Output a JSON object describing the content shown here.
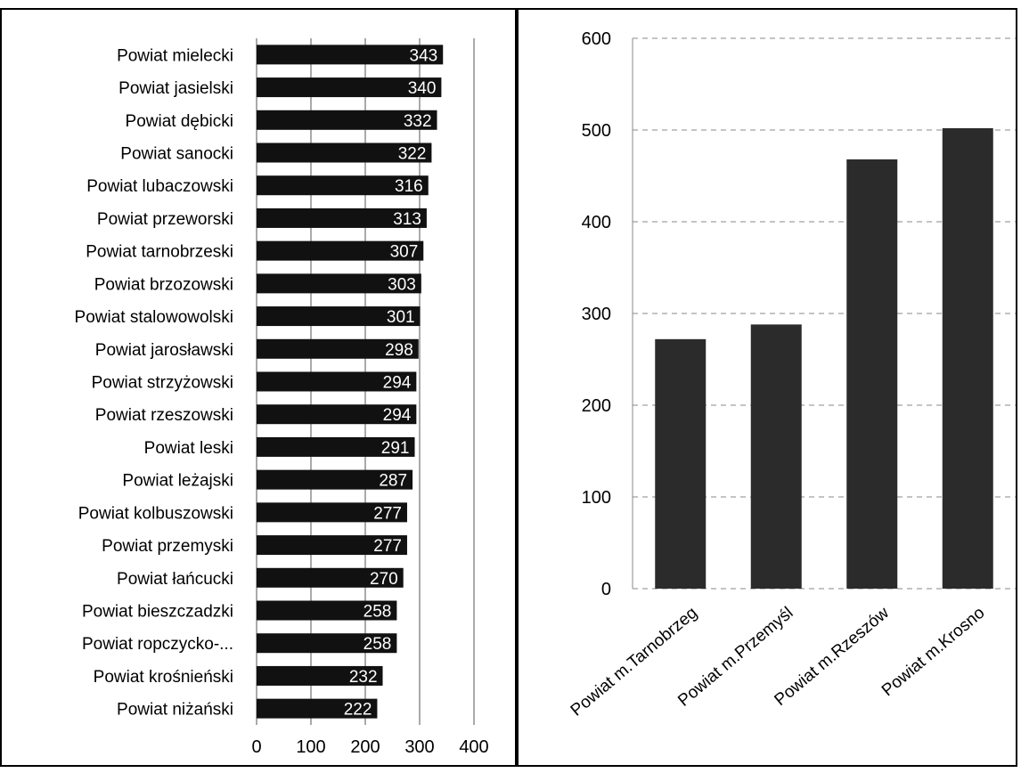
{
  "chart_data": [
    {
      "type": "bar",
      "orientation": "horizontal",
      "categories": [
        "Powiat mielecki",
        "Powiat jasielski",
        "Powiat dębicki",
        "Powiat sanocki",
        "Powiat lubaczowski",
        "Powiat przeworski",
        "Powiat tarnobrzeski",
        "Powiat brzozowski",
        "Powiat stalowowolski",
        "Powiat jarosławski",
        "Powiat strzyżowski",
        "Powiat rzeszowski",
        "Powiat leski",
        "Powiat leżajski",
        "Powiat kolbuszowski",
        "Powiat przemyski",
        "Powiat łańcucki",
        "Powiat bieszczadzki",
        "Powiat ropczycko-...",
        "Powiat krośnieński",
        "Powiat niżański"
      ],
      "values": [
        343,
        340,
        332,
        322,
        316,
        313,
        307,
        303,
        301,
        298,
        294,
        294,
        291,
        287,
        277,
        277,
        270,
        258,
        258,
        232,
        222
      ],
      "data_labels": [
        "343",
        "340",
        "332",
        "322",
        "316",
        "313",
        "307",
        "303",
        "301",
        "298",
        "294",
        "294",
        "291",
        "287",
        "277",
        "277",
        "270",
        "258",
        "258",
        "232",
        "222"
      ],
      "xlim": [
        0,
        400
      ],
      "xticks": [
        "0",
        "100",
        "200",
        "300",
        "400"
      ],
      "grid": true,
      "bar_color": "#111111",
      "label_color": "#ffffff"
    },
    {
      "type": "bar",
      "orientation": "vertical",
      "categories": [
        "Powiat m.Tarnobrzeg",
        "Powiat m.Przemyśl",
        "Powiat m.Rzeszów",
        "Powiat m.Krosno"
      ],
      "values": [
        272,
        288,
        468,
        502
      ],
      "ylim": [
        0,
        600
      ],
      "yticks": [
        "0",
        "100",
        "200",
        "300",
        "400",
        "500",
        "600"
      ],
      "grid": true,
      "bar_color": "#2b2b2b"
    }
  ]
}
